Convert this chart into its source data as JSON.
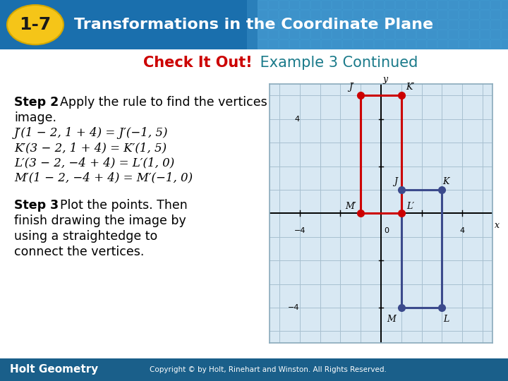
{
  "title_badge": "1-7",
  "title_badge_bg": "#F5C518",
  "title_text": "Transformations in the Coordinate Plane",
  "title_bg_left": "#1A6FAD",
  "title_bg_right": "#5BB0D8",
  "header_subtitle_bold": "Check It Out!",
  "header_subtitle_bold_color": "#CC0000",
  "header_subtitle_rest": " Example 3 Continued",
  "header_subtitle_rest_color": "#1A7A8A",
  "body_bg": "#FFFFFF",
  "footer_bg": "#1A5F8A",
  "footer_text": "Holt Geometry",
  "footer_copyright": "Copyright © by Holt, Rinehart and Winston. All Rights Reserved.",
  "step2_lines": [
    "J′(1 − 2, 1 + 4) = J′(−1, 5)",
    "K′(3 − 2, 1 + 4) = K′(1, 5)",
    "L′(3 − 2, −4 + 4) = L′(1, 0)",
    "M′(1 − 2, −4 + 4) = M′(−1, 0)"
  ],
  "original_quad_x": [
    1,
    3,
    3,
    1,
    1
  ],
  "original_quad_y": [
    1,
    1,
    -4,
    -4,
    1
  ],
  "original_color": "#3B4A8C",
  "original_points": [
    [
      1,
      1
    ],
    [
      3,
      1
    ],
    [
      3,
      -4
    ],
    [
      1,
      -4
    ]
  ],
  "original_labels": [
    "J",
    "K",
    "L",
    "M"
  ],
  "image_quad_x": [
    -1,
    1,
    1,
    -1,
    -1
  ],
  "image_quad_y": [
    5,
    5,
    0,
    0,
    5
  ],
  "image_color": "#CC0000",
  "image_points": [
    [
      -1,
      5
    ],
    [
      1,
      5
    ],
    [
      1,
      0
    ],
    [
      -1,
      0
    ]
  ],
  "image_labels": [
    "J′",
    "K′",
    "L′",
    "M′"
  ],
  "grid_bg": "#D8E8F3",
  "grid_line_color": "#A8C0D0"
}
